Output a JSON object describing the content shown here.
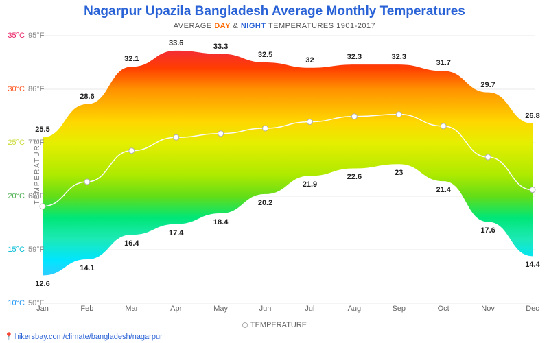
{
  "title": "Nagarpur Upazila Bangladesh Average Monthly Temperatures",
  "subtitle_prefix": "AVERAGE ",
  "subtitle_day": "DAY",
  "subtitle_amp": " & ",
  "subtitle_night": "NIGHT",
  "subtitle_suffix": " TEMPERATURES 1901-2017",
  "y_label": "TEMPERATURE",
  "legend_text": "TEMPERATURE",
  "source": "hikersbay.com/climate/bangladesh/nagarpur",
  "chart": {
    "type": "area-band-with-line",
    "months": [
      "Jan",
      "Feb",
      "Mar",
      "Apr",
      "May",
      "Jun",
      "Jul",
      "Aug",
      "Sep",
      "Oct",
      "Nov",
      "Dec"
    ],
    "day": [
      25.5,
      28.6,
      32.1,
      33.6,
      33.3,
      32.5,
      32.0,
      32.3,
      32.3,
      31.7,
      29.7,
      26.8
    ],
    "night": [
      12.6,
      14.1,
      16.4,
      17.4,
      18.4,
      20.2,
      21.9,
      22.6,
      23.0,
      21.4,
      17.6,
      14.4
    ],
    "avg": [
      19.05,
      21.35,
      24.25,
      25.5,
      25.85,
      26.35,
      26.95,
      27.45,
      27.65,
      26.55,
      23.65,
      20.6
    ],
    "y_min_c": 10,
    "y_max_c": 35,
    "y_tick_step": 5,
    "y_ticks": [
      {
        "c": 35,
        "f": 95
      },
      {
        "c": 30,
        "f": 86
      },
      {
        "c": 25,
        "f": 77
      },
      {
        "c": 20,
        "f": 68
      },
      {
        "c": 15,
        "f": 59
      },
      {
        "c": 10,
        "f": 50
      }
    ],
    "line_color": "#fafafa",
    "line_width": 1.5,
    "marker_fill": "#ffffff",
    "marker_stroke": "#b0b0b0",
    "marker_radius": 4,
    "grid_color": "#e8e8e8",
    "gradient_stops": [
      {
        "c": 35,
        "color": "#e91e63"
      },
      {
        "c": 32,
        "color": "#ff3d00"
      },
      {
        "c": 30,
        "color": "#ff9100"
      },
      {
        "c": 27,
        "color": "#ffd600"
      },
      {
        "c": 25,
        "color": "#e6ee00"
      },
      {
        "c": 22,
        "color": "#aeea00"
      },
      {
        "c": 20,
        "color": "#64dd17"
      },
      {
        "c": 18,
        "color": "#00e676"
      },
      {
        "c": 16,
        "color": "#1de9b6"
      },
      {
        "c": 14,
        "color": "#00e5ff"
      },
      {
        "c": 12,
        "color": "#40c4ff"
      },
      {
        "c": 10,
        "color": "#2979ff"
      }
    ],
    "title_fontsize": 19,
    "label_fontsize": 11,
    "background": "#ffffff"
  }
}
